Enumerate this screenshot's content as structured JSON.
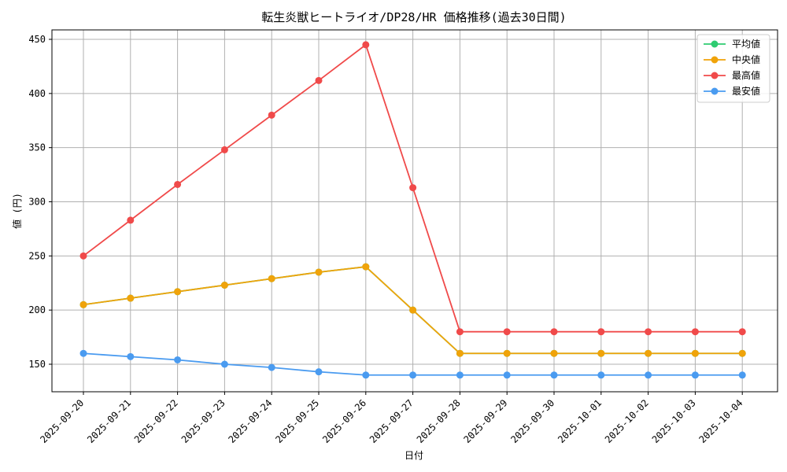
{
  "chart_data": {
    "type": "line",
    "title": "転生炎獣ヒートライオ/DP28/HR 価格推移(過去30日間)",
    "xlabel": "日付",
    "ylabel": "値 (円)",
    "ylim": [
      125,
      460
    ],
    "yticks": [
      150,
      200,
      250,
      300,
      350,
      400,
      450
    ],
    "grid": true,
    "legend_position": "top-right",
    "categories": [
      "2025-09-20",
      "2025-09-21",
      "2025-09-22",
      "2025-09-23",
      "2025-09-24",
      "2025-09-25",
      "2025-09-26",
      "2025-09-27",
      "2025-09-28",
      "2025-09-29",
      "2025-09-30",
      "2025-10-01",
      "2025-10-02",
      "2025-10-03",
      "2025-10-04"
    ],
    "series": [
      {
        "name": "平均値",
        "color": "#2ecc71",
        "values": [
          205,
          211,
          217,
          223,
          229,
          235,
          240,
          200,
          160,
          160,
          160,
          160,
          160,
          160,
          160
        ]
      },
      {
        "name": "中央値",
        "color": "#f0a30a",
        "values": [
          205,
          211,
          217,
          223,
          229,
          235,
          240,
          200,
          160,
          160,
          160,
          160,
          160,
          160,
          160
        ]
      },
      {
        "name": "最高値",
        "color": "#f04a4a",
        "values": [
          250,
          283,
          316,
          348,
          380,
          412,
          445,
          313,
          180,
          180,
          180,
          180,
          180,
          180,
          180
        ]
      },
      {
        "name": "最安値",
        "color": "#4a9bf0",
        "values": [
          160,
          157,
          154,
          150,
          147,
          143,
          140,
          140,
          140,
          140,
          140,
          140,
          140,
          140,
          140
        ]
      }
    ]
  }
}
